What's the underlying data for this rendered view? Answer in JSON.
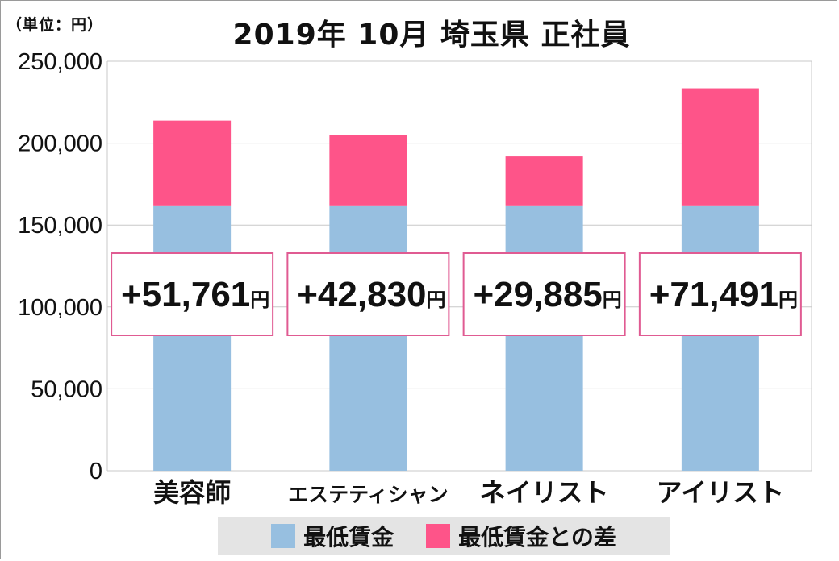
{
  "unit_label": "（単位：円）",
  "title": "2019年 10月  埼玉県  正社員",
  "chart_data": {
    "type": "bar",
    "stacked": true,
    "categories": [
      "美容師",
      "エステティシャン",
      "ネイリスト",
      "アイリスト"
    ],
    "series": [
      {
        "name": "最低賃金",
        "color": "#97bfe0",
        "values": [
          162000,
          162000,
          162000,
          162000
        ]
      },
      {
        "name": "最低賃金との差",
        "color": "#fe5489",
        "values": [
          51761,
          42830,
          29885,
          71491
        ]
      }
    ],
    "ylim": [
      0,
      250000
    ],
    "yticks": [
      0,
      50000,
      100000,
      150000,
      200000,
      250000
    ],
    "ytick_labels": [
      "0",
      "50,000",
      "100,000",
      "150,000",
      "200,000",
      "250,000"
    ],
    "annotations": [
      {
        "value": "+51,761",
        "unit": "円"
      },
      {
        "value": "+42,830",
        "unit": "円"
      },
      {
        "value": "+29,885",
        "unit": "円"
      },
      {
        "value": "+71,491",
        "unit": "円"
      }
    ],
    "grid": true,
    "legend_position": "bottom",
    "xlabel": "",
    "ylabel": ""
  }
}
